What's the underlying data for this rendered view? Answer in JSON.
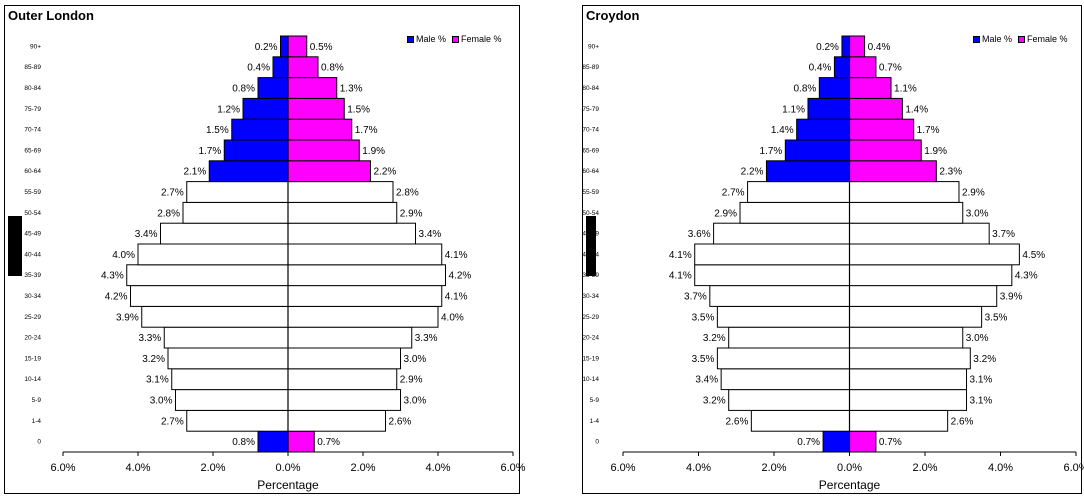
{
  "chart_data": [
    {
      "type": "bar",
      "orientation": "horizontal-population-pyramid",
      "title": "Outer London",
      "xlabel": "Percentage",
      "xlim": [
        -6,
        6
      ],
      "x_ticks": [
        "6.0%",
        "4.0%",
        "2.0%",
        "0.0%",
        "2.0%",
        "4.0%",
        "6.0%"
      ],
      "categories": [
        "0",
        "1-4",
        "5-9",
        "10-14",
        "15-19",
        "20-24",
        "25-29",
        "30-34",
        "35-39",
        "40-44",
        "45-49",
        "50-54",
        "55-59",
        "60-64",
        "65-69",
        "70-74",
        "75-79",
        "80-84",
        "85-89",
        "90+"
      ],
      "series": [
        {
          "name": "Male %",
          "values": [
            0.8,
            2.7,
            3.0,
            3.1,
            3.2,
            3.3,
            3.9,
            4.2,
            4.3,
            4.0,
            3.4,
            2.8,
            2.7,
            2.1,
            1.7,
            1.5,
            1.2,
            0.8,
            0.4,
            0.2
          ],
          "labels": [
            "0.8%",
            "2.7%",
            "3.0%",
            "3.1%",
            "3.2%",
            "3.3%",
            "3.9%",
            "4.2%",
            "4.3%",
            "4.0%",
            "3.4%",
            "2.8%",
            "2.7%",
            "2.1%",
            "1.7%",
            "1.5%",
            "1.2%",
            "0.8%",
            "0.4%",
            "0.2%"
          ]
        },
        {
          "name": "Female %",
          "values": [
            0.7,
            2.6,
            3.0,
            2.9,
            3.0,
            3.3,
            4.0,
            4.1,
            4.2,
            4.1,
            3.4,
            2.9,
            2.8,
            2.2,
            1.9,
            1.7,
            1.5,
            1.3,
            0.8,
            0.5
          ],
          "labels": [
            "0.7%",
            "2.6%",
            "3.0%",
            "2.9%",
            "3.0%",
            "3.3%",
            "4.0%",
            "4.1%",
            "4.2%",
            "4.1%",
            "3.4%",
            "2.9%",
            "2.8%",
            "2.2%",
            "1.9%",
            "1.7%",
            "1.5%",
            "1.3%",
            "0.8%",
            "0.5%"
          ]
        }
      ],
      "colored_categories": [
        "0",
        "60-64",
        "65-69",
        "70-74",
        "75-79",
        "80-84",
        "85-89",
        "90+"
      ],
      "colors": {
        "male": "#0000ff",
        "female": "#ff00ff",
        "other": "#ffffff",
        "outline": "#000000"
      },
      "legend_position": "top-right",
      "grid": false
    },
    {
      "type": "bar",
      "orientation": "horizontal-population-pyramid",
      "title": "Croydon",
      "xlabel": "Percentage",
      "xlim": [
        -6,
        6
      ],
      "x_ticks": [
        "6.0%",
        "4.0%",
        "2.0%",
        "0.0%",
        "2.0%",
        "4.0%",
        "6.0%"
      ],
      "categories": [
        "0",
        "1-4",
        "5-9",
        "10-14",
        "15-19",
        "20-24",
        "25-29",
        "30-34",
        "35-39",
        "40-44",
        "45-49",
        "50-54",
        "55-59",
        "60-64",
        "65-69",
        "70-74",
        "75-79",
        "80-84",
        "85-89",
        "90+"
      ],
      "series": [
        {
          "name": "Male %",
          "values": [
            0.7,
            2.6,
            3.2,
            3.4,
            3.5,
            3.2,
            3.5,
            3.7,
            4.1,
            4.1,
            3.6,
            2.9,
            2.7,
            2.2,
            1.7,
            1.4,
            1.1,
            0.8,
            0.4,
            0.2
          ],
          "labels": [
            "0.7%",
            "2.6%",
            "3.2%",
            "3.4%",
            "3.5%",
            "3.2%",
            "3.5%",
            "3.7%",
            "4.1%",
            "4.1%",
            "3.6%",
            "2.9%",
            "2.7%",
            "2.2%",
            "1.7%",
            "1.4%",
            "1.1%",
            "0.8%",
            "0.4%",
            "0.2%"
          ]
        },
        {
          "name": "Female %",
          "values": [
            0.7,
            2.6,
            3.1,
            3.1,
            3.2,
            3.0,
            3.5,
            3.9,
            4.3,
            4.5,
            3.7,
            3.0,
            2.9,
            2.3,
            1.9,
            1.7,
            1.4,
            1.1,
            0.7,
            0.4
          ],
          "labels": [
            "0.7%",
            "2.6%",
            "3.1%",
            "3.1%",
            "3.2%",
            "3.0%",
            "3.5%",
            "3.9%",
            "4.3%",
            "4.5%",
            "3.7%",
            "3.0%",
            "2.9%",
            "2.3%",
            "1.9%",
            "1.7%",
            "1.4%",
            "1.1%",
            "0.7%",
            "0.4%"
          ]
        }
      ],
      "colored_categories": [
        "0",
        "60-64",
        "65-69",
        "70-74",
        "75-79",
        "80-84",
        "85-89",
        "90+"
      ],
      "colors": {
        "male": "#0000ff",
        "female": "#ff00ff",
        "other": "#ffffff",
        "outline": "#000000"
      },
      "legend_position": "top-right",
      "grid": false
    }
  ]
}
